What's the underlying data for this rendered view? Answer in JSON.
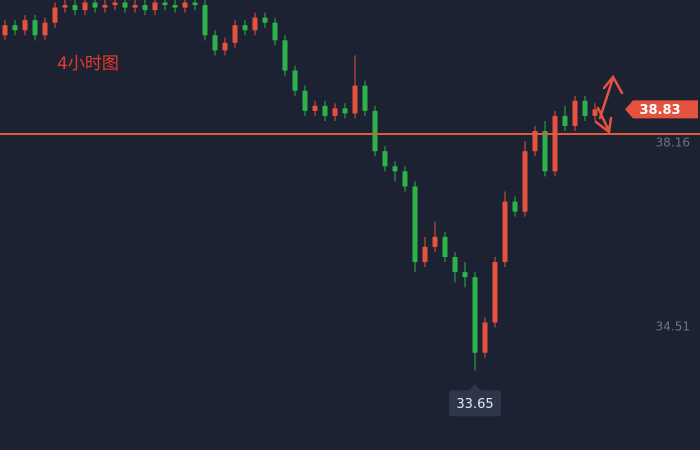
{
  "chart_data": {
    "type": "candlestick",
    "annotation": "4小时图",
    "open": [
      40.3,
      40.5,
      40.4,
      40.6,
      40.3,
      40.55,
      40.85,
      40.9,
      40.8,
      40.95,
      40.85,
      40.9,
      40.95,
      40.85,
      40.9,
      40.8,
      40.95,
      40.9,
      40.85,
      40.95,
      40.9,
      40.3,
      40.0,
      40.15,
      40.5,
      40.4,
      40.65,
      40.55,
      40.2,
      39.6,
      39.2,
      38.8,
      38.9,
      38.7,
      38.85,
      38.75,
      39.3,
      38.8,
      38.0,
      37.7,
      37.6,
      37.3,
      35.8,
      36.1,
      36.3,
      35.9,
      35.6,
      35.5,
      34.0,
      34.6,
      35.8,
      37.0,
      36.8,
      38.0,
      38.4,
      37.6,
      38.7,
      38.5,
      39.0,
      38.7
    ],
    "high": [
      40.6,
      40.6,
      40.7,
      40.7,
      40.65,
      40.95,
      41.0,
      41.0,
      41.0,
      41.0,
      41.0,
      41.0,
      41.0,
      41.0,
      41.0,
      41.0,
      41.0,
      41.0,
      41.0,
      41.0,
      41.0,
      40.4,
      40.25,
      40.6,
      40.6,
      40.75,
      40.75,
      40.65,
      40.3,
      39.7,
      39.3,
      39.0,
      39.0,
      38.95,
      38.95,
      39.9,
      39.4,
      38.9,
      38.1,
      37.8,
      37.7,
      37.4,
      36.3,
      36.6,
      36.4,
      36.0,
      35.8,
      35.6,
      34.7,
      35.9,
      37.2,
      37.1,
      38.2,
      38.5,
      38.6,
      38.8,
      38.9,
      39.1,
      39.1,
      38.95
    ],
    "low": [
      40.2,
      40.3,
      40.3,
      40.2,
      40.2,
      40.45,
      40.75,
      40.7,
      40.7,
      40.75,
      40.75,
      40.8,
      40.75,
      40.75,
      40.7,
      40.7,
      40.8,
      40.75,
      40.75,
      40.8,
      40.2,
      39.9,
      39.9,
      40.05,
      40.3,
      40.3,
      40.45,
      40.1,
      39.5,
      39.1,
      38.7,
      38.7,
      38.6,
      38.6,
      38.65,
      38.65,
      38.7,
      37.9,
      37.6,
      37.4,
      37.2,
      35.6,
      35.7,
      36.0,
      35.8,
      35.4,
      35.3,
      33.65,
      33.9,
      34.5,
      35.7,
      36.7,
      36.7,
      37.9,
      37.5,
      37.5,
      38.4,
      38.4,
      38.6,
      38.6
    ],
    "close": [
      40.5,
      40.4,
      40.6,
      40.3,
      40.55,
      40.85,
      40.9,
      40.8,
      40.95,
      40.85,
      40.9,
      40.95,
      40.85,
      40.9,
      40.8,
      40.95,
      40.9,
      40.85,
      40.95,
      40.9,
      40.3,
      40.0,
      40.15,
      40.5,
      40.4,
      40.65,
      40.55,
      40.2,
      39.6,
      39.2,
      38.8,
      38.9,
      38.7,
      38.85,
      38.75,
      39.3,
      38.8,
      38.0,
      37.7,
      37.6,
      37.3,
      35.8,
      36.1,
      36.3,
      35.9,
      35.6,
      35.5,
      34.0,
      34.6,
      35.8,
      37.0,
      36.8,
      38.0,
      38.4,
      37.6,
      38.7,
      38.5,
      39.0,
      38.7,
      38.83
    ],
    "up_color": "#e5533f",
    "down_color": "#2db34a",
    "ylim": [
      32.07,
      41.0
    ],
    "yticks": [
      38.16,
      34.51
    ],
    "last_price": 38.83,
    "low_price": 33.65,
    "low_index": 47,
    "hline": 38.34,
    "hline_color": "#e05a3c"
  }
}
